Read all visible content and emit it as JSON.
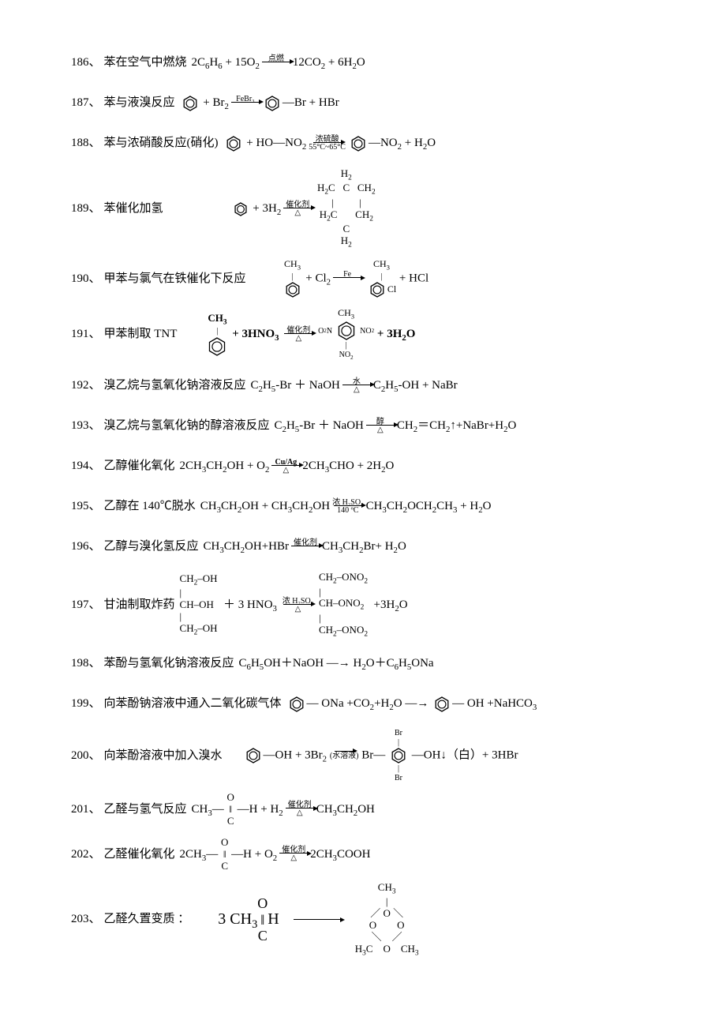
{
  "page": {
    "background_color": "#ffffff",
    "text_color": "#000000",
    "base_fontsize": 15,
    "font_family_cjk": "SimSun",
    "font_family_latin": "Times New Roman"
  },
  "items": [
    {
      "num": "186、",
      "desc": "苯在空气中燃烧",
      "lhs": "2C<sub>6</sub>H<sub>6</sub> + 15O<sub>2</sub>",
      "arrow_top": "点燃",
      "arrow_bot": "",
      "rhs": "12CO<sub>2</sub> + 6H<sub>2</sub>O",
      "has_benzene": false
    },
    {
      "num": "187、",
      "desc": "苯与液溴反应",
      "custom": true,
      "lhs_pre": "",
      "benzene_lhs": true,
      "lhs_post": " + Br<sub>2</sub>",
      "arrow_top": "FeBr₃",
      "arrow_bot": "",
      "benzene_rhs": true,
      "rhs_sub": "—Br",
      "rhs_post": " + HBr"
    },
    {
      "num": "188、",
      "desc": "苯与浓硝酸反应(硝化)",
      "custom": true,
      "benzene_lhs": true,
      "lhs_post": " + HO—NO<sub>2</sub>",
      "arrow_top": "浓硫酸",
      "arrow_bot": "55°C~65°C",
      "benzene_rhs": true,
      "rhs_sub": "—NO<sub>2</sub>",
      "rhs_post": " + H<sub>2</sub>O"
    },
    {
      "num": "189、",
      "desc": "苯催化加氢",
      "custom_full": "189"
    },
    {
      "num": "190、",
      "desc": "甲苯与氯气在铁催化下反应",
      "custom_full": "190"
    },
    {
      "num": "191、",
      "desc": "甲苯制取 TNT",
      "custom_full": "191"
    },
    {
      "num": "192、",
      "desc": "溴乙烷与氢氧化钠溶液反应",
      "lhs": "C<sub>2</sub>H<sub>5</sub>-Br ＋ NaOH",
      "arrow_top": "水",
      "arrow_bot": "△",
      "rhs": "C<sub>2</sub>H<sub>5</sub>-OH + NaBr"
    },
    {
      "num": "193、",
      "desc": "溴乙烷与氢氧化钠的醇溶液反应",
      "lhs": "C<sub>2</sub>H<sub>5</sub>-Br ＋ NaOH",
      "arrow_top": "醇",
      "arrow_bot": "△",
      "rhs": "CH<sub>2</sub>＝CH<sub>2</sub>↑+NaBr+H<sub>2</sub>O"
    },
    {
      "num": "194、",
      "desc": "乙醇催化氧化",
      "lhs": "2CH<sub>3</sub>CH<sub>2</sub>OH + O<sub>2</sub>",
      "arrow_top": "Cu/Ag",
      "arrow_bot": "△",
      "rhs": "2CH<sub>3</sub>CHO + 2H<sub>2</sub>O",
      "arrow_top_bold": true
    },
    {
      "num": "195、",
      "desc": "乙醇在 140℃脱水",
      "lhs": "CH<sub>3</sub>CH<sub>2</sub>OH + CH<sub>3</sub>CH<sub>2</sub>OH",
      "arrow_top": "浓 H₂SO₄",
      "arrow_bot": "140 ºC",
      "rhs": "CH<sub>3</sub>CH<sub>2</sub>OCH<sub>2</sub>CH<sub>3</sub> + H<sub>2</sub>O"
    },
    {
      "num": "196、",
      "desc": "乙醇与溴化氢反应",
      "lhs": "CH<sub>3</sub>CH<sub>2</sub>OH+HBr",
      "arrow_top": "催化剂",
      "arrow_bot": "",
      "rhs": "CH<sub>3</sub>CH<sub>2</sub>Br+ H<sub>2</sub>O"
    },
    {
      "num": "197、",
      "desc": "甘油制取炸药",
      "custom_full": "197"
    },
    {
      "num": "198、",
      "desc": "苯酚与氢氧化钠溶液反应",
      "lhs": "C<sub>6</sub>H<sub>5</sub>OH＋NaOH",
      "plain_arrow": "—→",
      "rhs": "H<sub>2</sub>O＋C<sub>6</sub>H<sub>5</sub>ONa"
    },
    {
      "num": "199、",
      "desc": "向苯酚钠溶液中通入二氧化碳气体",
      "custom_full": "199"
    },
    {
      "num": "200、",
      "desc": "向苯酚溶液中加入溴水",
      "custom_full": "200"
    },
    {
      "num": "201、",
      "desc": "乙醛与氢气反应",
      "custom_full": "201"
    },
    {
      "num": "202、",
      "desc": "乙醛催化氧化",
      "custom_full": "202"
    },
    {
      "num": "203、",
      "desc": "乙醛久置变质 ：",
      "custom_full": "203"
    }
  ],
  "svg": {
    "benzene_size": 22,
    "benzene_stroke": "#000000",
    "benzene_stroke_width": 1.3
  }
}
